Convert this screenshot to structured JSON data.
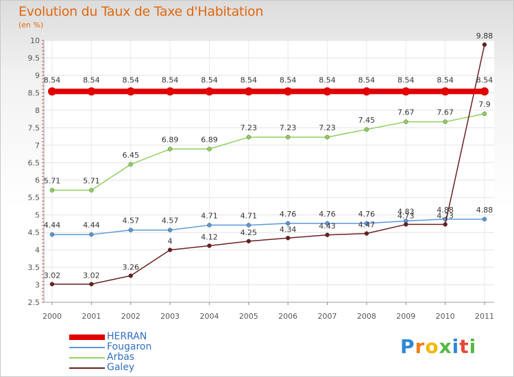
{
  "title": "Evolution du Taux de Taxe d'Habitation",
  "unit": "(en %)",
  "logo": {
    "letters": [
      "P",
      "r",
      "o",
      "x",
      "i",
      "t",
      "i"
    ],
    "colors": [
      "#2f86d6",
      "#f07d1b",
      "#f2b800",
      "#58b646",
      "#2f86d6",
      "#e8473a",
      "#58b646"
    ]
  },
  "chart_data": {
    "type": "line",
    "title": "Evolution du Taux de Taxe d'Habitation",
    "ylabel": "(en %)",
    "xlabel": "",
    "x": [
      "2000",
      "2001",
      "2002",
      "2003",
      "2004",
      "2005",
      "2006",
      "2007",
      "2008",
      "2009",
      "2010",
      "2011"
    ],
    "ylim": [
      2.5,
      10
    ],
    "yticks": [
      "2.5",
      "3",
      "3.5",
      "4",
      "4.5",
      "5",
      "5.5",
      "6",
      "6.5",
      "7",
      "7.5",
      "8",
      "8.5",
      "9",
      "9.5",
      "10"
    ],
    "grid": true,
    "legend_position": "bottom-left",
    "series": [
      {
        "name": "HERRAN",
        "color": "#e00000",
        "values": [
          8.54,
          8.54,
          8.54,
          8.54,
          8.54,
          8.54,
          8.54,
          8.54,
          8.54,
          8.54,
          8.54,
          8.54
        ],
        "labels": [
          "8.54",
          "8.54",
          "8.54",
          "8.54",
          "8.54",
          "8.54",
          "8.54",
          "8.54",
          "8.54",
          "8.54",
          "8.54",
          "8.54"
        ]
      },
      {
        "name": "Fougaron",
        "color": "#5a97d8",
        "values": [
          4.44,
          4.44,
          4.57,
          4.57,
          4.71,
          4.71,
          4.76,
          4.76,
          4.76,
          4.83,
          4.88,
          4.88
        ],
        "labels": [
          "4.44",
          "4.44",
          "4.57",
          "4.57",
          "4.71",
          "4.71",
          "4.76",
          "4.76",
          "4.76",
          "4.83",
          "4.88",
          "4.88"
        ]
      },
      {
        "name": "Arbas",
        "color": "#8fd05a",
        "values": [
          5.71,
          5.71,
          6.45,
          6.89,
          6.89,
          7.23,
          7.23,
          7.23,
          7.45,
          7.67,
          7.67,
          7.9
        ],
        "labels": [
          "5.71",
          "5.71",
          "6.45",
          "6.89",
          "6.89",
          "7.23",
          "7.23",
          "7.23",
          "7.45",
          "7.67",
          "7.67",
          "7.9"
        ]
      },
      {
        "name": "Galey",
        "color": "#6b1e1e",
        "values": [
          3.02,
          3.02,
          3.26,
          4.0,
          4.12,
          4.25,
          4.34,
          4.43,
          4.47,
          4.73,
          4.73,
          9.88
        ],
        "labels": [
          "3.02",
          "3.02",
          "3.26",
          "4",
          "4.12",
          "4.25",
          "4.34",
          "4.43",
          "4.47",
          "4.73",
          "4.73",
          "9.88"
        ]
      }
    ]
  }
}
